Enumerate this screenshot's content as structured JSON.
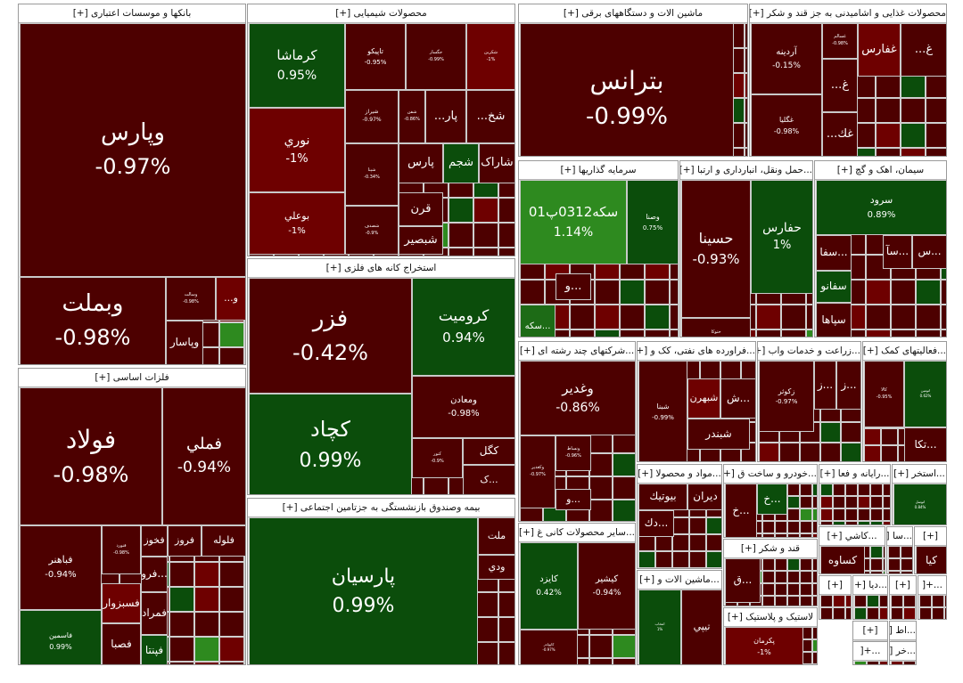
{
  "colors": {
    "down_dark": "#4d0000",
    "down_mid": "#6e0000",
    "down_bright": "#8b0b0b",
    "up_dark": "#0b4d0b",
    "up_mid": "#1d6b16",
    "up_bright": "#2e8a1f",
    "up_light": "#33b01e"
  },
  "chart_data": {
    "type": "treemap",
    "sections": [
      {
        "name": "بانکها و موسسات اعتباری [+]",
        "stocks": [
          {
            "name": "وپارس",
            "change": "-0.97%",
            "color": "down_dark"
          },
          {
            "name": "وبملت",
            "change": "-0.98%",
            "color": "down_dark"
          },
          {
            "name": "وپاسار",
            "change": "",
            "color": "down_dark"
          },
          {
            "name": "وسالت",
            "change": "-0.98%",
            "color": "down_dark"
          },
          {
            "name": "و...",
            "change": "",
            "color": "down_mid"
          }
        ]
      },
      {
        "name": "محصولات شیمیایی [+]",
        "stocks": [
          {
            "name": "کرماشا",
            "change": "0.95%",
            "color": "up_dark"
          },
          {
            "name": "تاپیکو",
            "change": "-0.95%",
            "color": "down_dark"
          },
          {
            "name": "جگسار",
            "change": "-0.99%",
            "color": "down_dark"
          },
          {
            "name": "شکربن",
            "change": "-1%",
            "color": "down_mid"
          },
          {
            "name": "نوري",
            "change": "-1%",
            "color": "down_mid"
          },
          {
            "name": "بوعلي",
            "change": "-1%",
            "color": "down_mid"
          },
          {
            "name": "شيراز",
            "change": "-0.97%",
            "color": "down_dark"
          },
          {
            "name": "شفن",
            "change": "-0.86%",
            "color": "down_dark"
          },
          {
            "name": "پار...",
            "change": "",
            "color": "down_dark"
          },
          {
            "name": "شخ...",
            "change": "",
            "color": "down_dark"
          },
          {
            "name": "شپنا",
            "change": "-0.34%",
            "color": "down_dark"
          },
          {
            "name": "پارس",
            "change": "",
            "color": "down_dark"
          },
          {
            "name": "شجم",
            "change": "",
            "color": "up_dark"
          },
          {
            "name": "شاراک",
            "change": "",
            "color": "down_dark"
          },
          {
            "name": "قرن",
            "change": "",
            "color": "down_dark"
          },
          {
            "name": "شصدف",
            "change": "-0.9%",
            "color": "down_dark"
          },
          {
            "name": "شبصير",
            "change": "",
            "color": "down_dark"
          }
        ]
      },
      {
        "name": "ماشین الات و دستگاههای برقی [+]",
        "stocks": [
          {
            "name": "بترانس",
            "change": "-0.99%",
            "color": "down_dark"
          }
        ]
      },
      {
        "name": "محصولات غذایی و اشامیدنی به جز قند و شکر [+]",
        "stocks": [
          {
            "name": "آردينه",
            "change": "-0.15%",
            "color": "down_dark"
          },
          {
            "name": "غسالم",
            "change": "-0.98%",
            "color": "down_dark"
          },
          {
            "name": "غفارس",
            "change": "",
            "color": "down_mid"
          },
          {
            "name": "غ...",
            "change": "",
            "color": "down_dark"
          },
          {
            "name": "غگليا",
            "change": "-0.98%",
            "color": "down_dark"
          },
          {
            "name": "غ...",
            "change": "",
            "color": "down_dark"
          },
          {
            "name": "غك...",
            "change": "",
            "color": "down_dark"
          }
        ]
      },
      {
        "name": "استخراج کانه های فلزی [+]",
        "stocks": [
          {
            "name": "فزر",
            "change": "-0.42%",
            "color": "down_dark"
          },
          {
            "name": "كروميت",
            "change": "0.94%",
            "color": "up_dark"
          },
          {
            "name": "کچاد",
            "change": "0.99%",
            "color": "up_dark"
          },
          {
            "name": "ومعادن",
            "change": "-0.98%",
            "color": "down_dark"
          },
          {
            "name": "كگل",
            "change": "",
            "color": "down_dark"
          },
          {
            "name": "كنور",
            "change": "-0.9%",
            "color": "down_dark"
          },
          {
            "name": "...ک",
            "change": "",
            "color": "down_dark"
          }
        ]
      },
      {
        "name": "سرمایه گذاریها [+]",
        "stocks": [
          {
            "name": "سکه0312پ01",
            "change": "1.14%",
            "color": "up_bright"
          },
          {
            "name": "وصنا",
            "change": "0.75%",
            "color": "up_dark"
          },
          {
            "name": "...سکه",
            "change": "",
            "color": "up_mid"
          },
          {
            "name": "...و",
            "change": "",
            "color": "down_dark"
          }
        ]
      },
      {
        "name": "...حمل ونقل، انبارداری و ارتبا [+]",
        "stocks": [
          {
            "name": "حسينا",
            "change": "-0.93%",
            "color": "down_dark"
          },
          {
            "name": "حفارس",
            "change": "1%",
            "color": "up_dark"
          },
          {
            "name": "حتوکا",
            "change": "-0.99%",
            "color": "down_dark"
          }
        ]
      },
      {
        "name": "سیمان، اهک و گچ [+]",
        "stocks": [
          {
            "name": "سرود",
            "change": "0.89%",
            "color": "up_dark"
          },
          {
            "name": "...س",
            "change": "",
            "color": "down_dark"
          },
          {
            "name": "...سآ",
            "change": "",
            "color": "down_dark"
          },
          {
            "name": "...سفا",
            "change": "",
            "color": "down_dark"
          },
          {
            "name": "سفانو",
            "change": "",
            "color": "up_dark"
          },
          {
            "name": "سپاها",
            "change": "",
            "color": "down_dark"
          }
        ]
      },
      {
        "name": "فلزات اساسی [+]",
        "stocks": [
          {
            "name": "فولاد",
            "change": "-0.98%",
            "color": "down_dark"
          },
          {
            "name": "فملي",
            "change": "-0.94%",
            "color": "down_dark"
          },
          {
            "name": "فباهنر",
            "change": "-0.94%",
            "color": "down_dark"
          },
          {
            "name": "فنورد",
            "change": "-0.98%",
            "color": "down_dark"
          },
          {
            "name": "فخوز",
            "change": "",
            "color": "down_dark"
          },
          {
            "name": "فروز",
            "change": "",
            "color": "down_dark"
          },
          {
            "name": "فلوله",
            "change": "",
            "color": "down_dark"
          },
          {
            "name": "فسبزوار",
            "change": "",
            "color": "down_mid"
          },
          {
            "name": "...فرو",
            "change": "",
            "color": "down_dark"
          },
          {
            "name": "فمراد",
            "change": "",
            "color": "down_dark"
          },
          {
            "name": "فاسمين",
            "change": "0.99%",
            "color": "up_dark"
          },
          {
            "name": "فصبا",
            "change": "",
            "color": "down_dark"
          },
          {
            "name": "فپنتا",
            "change": "",
            "color": "up_dark"
          }
        ]
      },
      {
        "name": "بیمه وصندوق بازنشستگی به جزتامین اجتماعی [+]",
        "stocks": [
          {
            "name": "پارسيان",
            "change": "0.99%",
            "color": "up_dark"
          },
          {
            "name": "ملت",
            "change": "",
            "color": "down_dark"
          },
          {
            "name": "ودي",
            "change": "",
            "color": "down_dark"
          }
        ]
      },
      {
        "name": "...شرکتهای چند رشته ای [+]",
        "stocks": [
          {
            "name": "وغدير",
            "change": "-0.86%",
            "color": "down_dark"
          },
          {
            "name": "وكغدير",
            "change": "-0.97%",
            "color": "down_dark"
          },
          {
            "name": "ونساط",
            "change": "-0.96%",
            "color": "down_dark"
          },
          {
            "name": "...و",
            "change": "",
            "color": "down_dark"
          }
        ]
      },
      {
        "name": "...فراورده های نفتی، کک و [+]",
        "stocks": [
          {
            "name": "شبنا",
            "change": "-0.99%",
            "color": "down_dark"
          },
          {
            "name": "شبهرن",
            "change": "",
            "color": "down_mid"
          },
          {
            "name": "...ش",
            "change": "",
            "color": "down_dark"
          },
          {
            "name": "شبندر",
            "change": "",
            "color": "down_dark"
          }
        ]
      },
      {
        "name": "...زراعت و خدمات واب [+]",
        "stocks": [
          {
            "name": "زكوثر",
            "change": "-0.97%",
            "color": "down_dark"
          },
          {
            "name": "...ز",
            "change": "",
            "color": "down_dark"
          },
          {
            "name": "...ز",
            "change": "",
            "color": "down_dark"
          }
        ]
      },
      {
        "name": "...فعالیتهای کمک [+]",
        "stocks": [
          {
            "name": "کالا",
            "change": "-0.95%",
            "color": "down_dark"
          },
          {
            "name": "اتومين",
            "change": "0.62%",
            "color": "up_dark"
          },
          {
            "name": "...تکا",
            "change": "",
            "color": "down_dark"
          }
        ]
      },
      {
        "name": "...مواد و محصولا [+]",
        "stocks": [
          {
            "name": "ديران",
            "change": "",
            "color": "down_dark"
          },
          {
            "name": "بيوتيك",
            "change": "",
            "color": "down_dark"
          },
          {
            "name": "...دك",
            "change": "",
            "color": "down_dark"
          }
        ]
      },
      {
        "name": "...خودرو و ساخت ق [+]",
        "stocks": [
          {
            "name": "...خ",
            "change": "",
            "color": "down_dark"
          },
          {
            "name": "...خ",
            "change": "",
            "color": "up_dark"
          }
        ]
      },
      {
        "name": "...رایانه و فعا [+]",
        "stocks": []
      },
      {
        "name": "...استخر [+]",
        "stocks": [
          {
            "name": "اتوسل",
            "change": "0.84%",
            "color": "up_dark"
          }
        ]
      },
      {
        "name": "...سایر محصولات کانی غ [+]",
        "stocks": [
          {
            "name": "كايزد",
            "change": "0.42%",
            "color": "up_dark"
          },
          {
            "name": "كيشير",
            "change": "-0.94%",
            "color": "down_dark"
          },
          {
            "name": "کاپولدر",
            "change": "-0.97%",
            "color": "down_dark"
          }
        ]
      },
      {
        "name": "...ماشین الات و [+]",
        "stocks": [
          {
            "name": "انتخاب",
            "change": "1%",
            "color": "up_dark"
          },
          {
            "name": "تيپي",
            "change": "",
            "color": "down_dark"
          }
        ]
      },
      {
        "name": "قند و شکر [+]",
        "stocks": [
          {
            "name": "...ق",
            "change": "",
            "color": "down_dark"
          }
        ]
      },
      {
        "name": "لاستیک و پلاستیک [+]",
        "stocks": [
          {
            "name": "پكرمان",
            "change": "-1%",
            "color": "down_mid"
          }
        ]
      },
      {
        "name": "...كاشي [+]",
        "stocks": [
          {
            "name": "كساوه",
            "change": "",
            "color": "down_dark"
          }
        ]
      },
      {
        "name": "...سا [+]",
        "stocks": []
      },
      {
        "name": "[+]",
        "stocks": [
          {
            "name": "كيا",
            "change": "",
            "color": "down_dark"
          }
        ]
      },
      {
        "name": "[+]",
        "stocks": []
      },
      {
        "name": "...دیا [+]",
        "stocks": []
      },
      {
        "name": "[+]",
        "stocks": []
      },
      {
        "name": "...+[",
        "stocks": []
      },
      {
        "name": "[+]",
        "stocks": []
      },
      {
        "name": "...اط [+]",
        "stocks": []
      },
      {
        "name": "...+[",
        "stocks": []
      },
      {
        "name": "...خر [+]",
        "stocks": []
      },
      {
        "name": "...+[",
        "stocks": []
      }
    ]
  }
}
